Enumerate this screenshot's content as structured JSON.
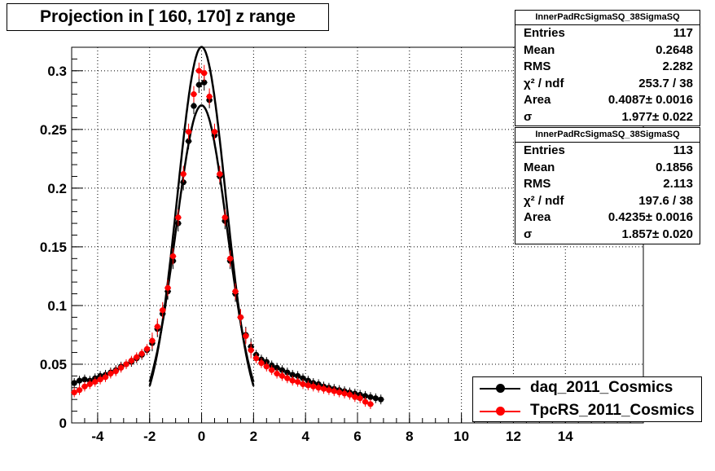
{
  "title": "Projection in [ 160, 170] z range",
  "colors": {
    "daq": "#000000",
    "tpcrs": "#ff0000",
    "fit": "#000000"
  },
  "stats": [
    {
      "name": "InnerPadRcSigmaSQ_38SigmaSQ",
      "rows": [
        {
          "label": "Entries",
          "value": "117"
        },
        {
          "label": "Mean",
          "value": "0.2648"
        },
        {
          "label": "RMS",
          "value": "2.282"
        },
        {
          "label": "χ² / ndf",
          "value": "253.7 / 38"
        },
        {
          "label": "Area",
          "value": "0.4087± 0.0016"
        },
        {
          "label": "σ",
          "value": "1.977± 0.022"
        }
      ]
    },
    {
      "name": "InnerPadRcSigmaSQ_38SigmaSQ",
      "rows": [
        {
          "label": "Entries",
          "value": "113"
        },
        {
          "label": "Mean",
          "value": "0.1856"
        },
        {
          "label": "RMS",
          "value": "2.113"
        },
        {
          "label": "χ² / ndf",
          "value": "197.6 / 38"
        },
        {
          "label": "Area",
          "value": "0.4235± 0.0016"
        },
        {
          "label": "σ",
          "value": "1.857± 0.020"
        }
      ]
    }
  ],
  "legend": [
    {
      "label": "daq_2011_Cosmics",
      "color": "#000000"
    },
    {
      "label": "TpcRS_2011_Cosmics",
      "color": "#ff0000"
    }
  ],
  "chart_data": {
    "type": "scatter",
    "title": "Projection in [ 160, 170] z range",
    "xlim": [
      -5,
      17
    ],
    "ylim": [
      0,
      0.32
    ],
    "grid": true,
    "legend_position": "bottom-right",
    "xticks": [
      "-4",
      "-2",
      "0",
      "2",
      "4",
      "6",
      "8",
      "10",
      "12",
      "14"
    ],
    "xtick_values": [
      -4,
      -2,
      0,
      2,
      4,
      6,
      8,
      10,
      12,
      14
    ],
    "yticks": [
      "0",
      "0.05",
      "0.1",
      "0.15",
      "0.2",
      "0.25",
      "0.3"
    ],
    "ytick_values": [
      0,
      0.05,
      0.1,
      0.15,
      0.2,
      0.25,
      0.3
    ],
    "series": [
      {
        "name": "daq_2011_Cosmics",
        "color": "#000000",
        "x": [
          -4.9,
          -4.7,
          -4.5,
          -4.3,
          -4.1,
          -3.9,
          -3.7,
          -3.5,
          -3.3,
          -3.1,
          -2.9,
          -2.7,
          -2.5,
          -2.3,
          -2.1,
          -1.9,
          -1.7,
          -1.5,
          -1.3,
          -1.1,
          -0.9,
          -0.7,
          -0.5,
          -0.3,
          -0.1,
          0.1,
          0.3,
          0.5,
          0.7,
          0.9,
          1.1,
          1.3,
          1.5,
          1.7,
          1.9,
          2.1,
          2.3,
          2.5,
          2.7,
          2.9,
          3.1,
          3.3,
          3.5,
          3.7,
          3.9,
          4.1,
          4.3,
          4.5,
          4.7,
          4.9,
          5.1,
          5.3,
          5.5,
          5.7,
          5.9,
          6.1,
          6.3,
          6.5,
          6.7,
          6.9
        ],
        "y": [
          0.034,
          0.036,
          0.037,
          0.036,
          0.038,
          0.04,
          0.041,
          0.043,
          0.045,
          0.048,
          0.05,
          0.052,
          0.055,
          0.058,
          0.062,
          0.068,
          0.08,
          0.093,
          0.112,
          0.138,
          0.17,
          0.205,
          0.24,
          0.27,
          0.288,
          0.29,
          0.275,
          0.245,
          0.21,
          0.172,
          0.138,
          0.11,
          0.09,
          0.075,
          0.065,
          0.058,
          0.054,
          0.052,
          0.049,
          0.047,
          0.045,
          0.043,
          0.041,
          0.04,
          0.038,
          0.036,
          0.034,
          0.033,
          0.031,
          0.03,
          0.029,
          0.028,
          0.027,
          0.026,
          0.025,
          0.024,
          0.023,
          0.022,
          0.021,
          0.02
        ]
      },
      {
        "name": "TpcRS_2011_Cosmics",
        "color": "#ff0000",
        "x": [
          -4.9,
          -4.7,
          -4.5,
          -4.3,
          -4.1,
          -3.9,
          -3.7,
          -3.5,
          -3.3,
          -3.1,
          -2.9,
          -2.7,
          -2.5,
          -2.3,
          -2.1,
          -1.9,
          -1.7,
          -1.5,
          -1.3,
          -1.1,
          -0.9,
          -0.7,
          -0.5,
          -0.3,
          -0.1,
          0.1,
          0.3,
          0.5,
          0.7,
          0.9,
          1.1,
          1.3,
          1.5,
          1.7,
          1.9,
          2.1,
          2.3,
          2.5,
          2.7,
          2.9,
          3.1,
          3.3,
          3.5,
          3.7,
          3.9,
          4.1,
          4.3,
          4.5,
          4.7,
          4.9,
          5.1,
          5.3,
          5.5,
          5.7,
          5.9,
          6.1,
          6.3,
          6.5
        ],
        "y": [
          0.026,
          0.028,
          0.031,
          0.033,
          0.035,
          0.037,
          0.039,
          0.042,
          0.044,
          0.047,
          0.05,
          0.053,
          0.056,
          0.059,
          0.063,
          0.07,
          0.082,
          0.096,
          0.115,
          0.142,
          0.175,
          0.212,
          0.248,
          0.28,
          0.3,
          0.298,
          0.278,
          0.248,
          0.212,
          0.175,
          0.14,
          0.112,
          0.09,
          0.074,
          0.062,
          0.055,
          0.051,
          0.048,
          0.045,
          0.042,
          0.04,
          0.038,
          0.036,
          0.035,
          0.033,
          0.032,
          0.031,
          0.03,
          0.029,
          0.028,
          0.027,
          0.026,
          0.025,
          0.024,
          0.022,
          0.021,
          0.018,
          0.016
        ]
      }
    ],
    "fits": [
      {
        "name": "InnerPadRcSigmaSQ_38SigmaSQ",
        "area": 0.4087,
        "sigma": 1.977,
        "xmin": -2,
        "xmax": 2,
        "color": "#000000"
      },
      {
        "name": "InnerPadRcSigmaSQ_38SigmaSQ",
        "area": 0.4235,
        "sigma": 1.857,
        "xmin": -2,
        "xmax": 2,
        "color": "#000000"
      }
    ]
  }
}
